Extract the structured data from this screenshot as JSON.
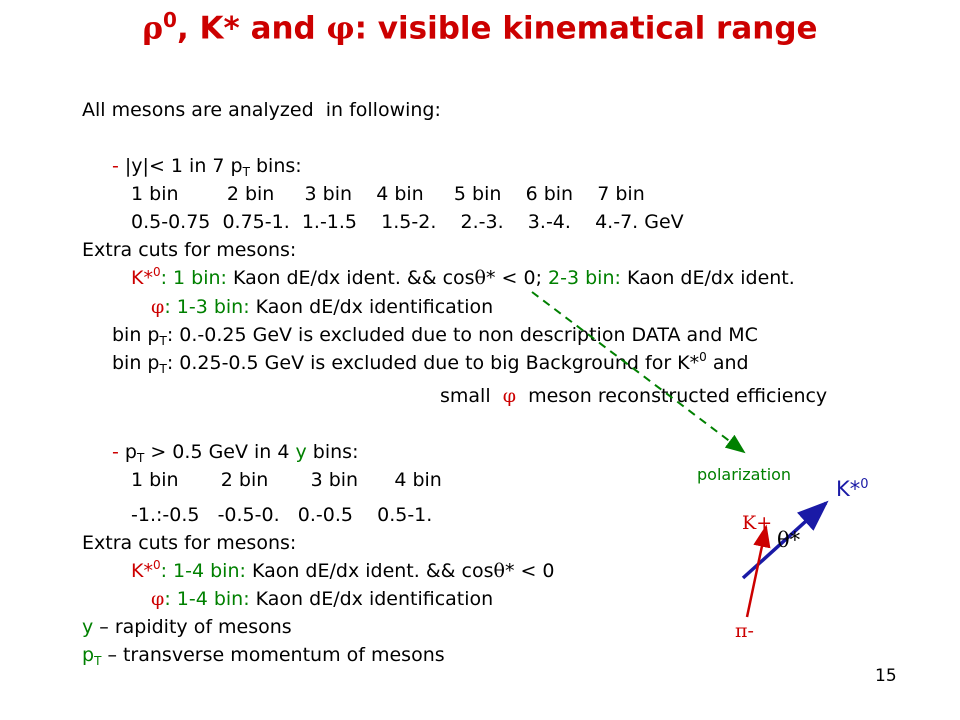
{
  "title": {
    "rho": "ρ",
    "rho_sup": "0",
    "mid": ", K* and ",
    "phi": "φ",
    "rest": ": visible kinematical range"
  },
  "intro": "All mesons are analyzed  in following:",
  "block1": {
    "dash": "- ",
    "cond_a": "|y|< 1 in 7 p",
    "cond_sub": "T",
    "cond_b": " bins:",
    "bins": "1 bin        2 bin     3 bin    4 bin     5 bin    6 bin    7 bin",
    "ranges": "0.5-0.75  0.75-1.  1.-1.5    1.5-2.    2.-3.    3.-4.    4.-7. GeV",
    "extra": "Extra cuts for mesons:",
    "kstar_name": "K*",
    "kstar_sup": "0",
    "kstar_a": ": 1 bin: ",
    "kstar_b": "Kaon dE/dx ident. && cos",
    "theta": "θ",
    "kstar_c": "* < 0; ",
    "kstar_d": "2-3 bin: ",
    "kstar_e": "Kaon dE/dx ident.",
    "phi": "φ",
    "phi_a": ": 1-3 bin: ",
    "phi_b": "Kaon dE/dx identification",
    "pt1_a": "bin p",
    "pt1_sub": "T",
    "pt1_b": ": 0.-0.25 GeV is excluded due to non description DATA and MC",
    "pt2_a": "bin p",
    "pt2_sub": "T",
    "pt2_b": ": 0.25-0.5 GeV is excluded due to big Background for K*",
    "pt2_sup": "0",
    "pt2_c": " and",
    "small_a": "small  ",
    "small_phi": "φ",
    "small_b": "  meson reconstructed efficiency"
  },
  "block2": {
    "dash": "- ",
    "cond_a": "p",
    "cond_sub": "T",
    "cond_b": " > 0.5 GeV in 4 ",
    "cond_y": "y",
    "cond_c": " bins:",
    "bins": "1 bin       2 bin       3 bin      4 bin",
    "ranges": "-1.:-0.5   -0.5-0.   0.-0.5    0.5-1.",
    "extra": "Extra cuts for mesons:",
    "kstar_name": "K*",
    "kstar_sup": "0",
    "kstar_a": ": 1-4 bin: ",
    "kstar_b": "Kaon dE/dx ident. && cos",
    "theta": "θ",
    "kstar_c": "* < 0",
    "phi": "φ",
    "phi_a": ": 1-4 bin: ",
    "phi_b": "Kaon dE/dx identification",
    "y_def_a": "y",
    "y_def_b": " – rapidity of mesons",
    "pt_def_a": "p",
    "pt_def_sub": "T",
    "pt_def_b": " – transverse momentum of mesons"
  },
  "diagram": {
    "polarization": "polarization",
    "kstar": "K*",
    "kstar_sup": "0",
    "kplus": "K+",
    "piminus": "π-",
    "theta_star": "θ*"
  },
  "slide_number": "15",
  "colors": {
    "title": "#cc0000",
    "green": "#008000",
    "red": "#cc0000",
    "blue": "#1a1aa6"
  }
}
